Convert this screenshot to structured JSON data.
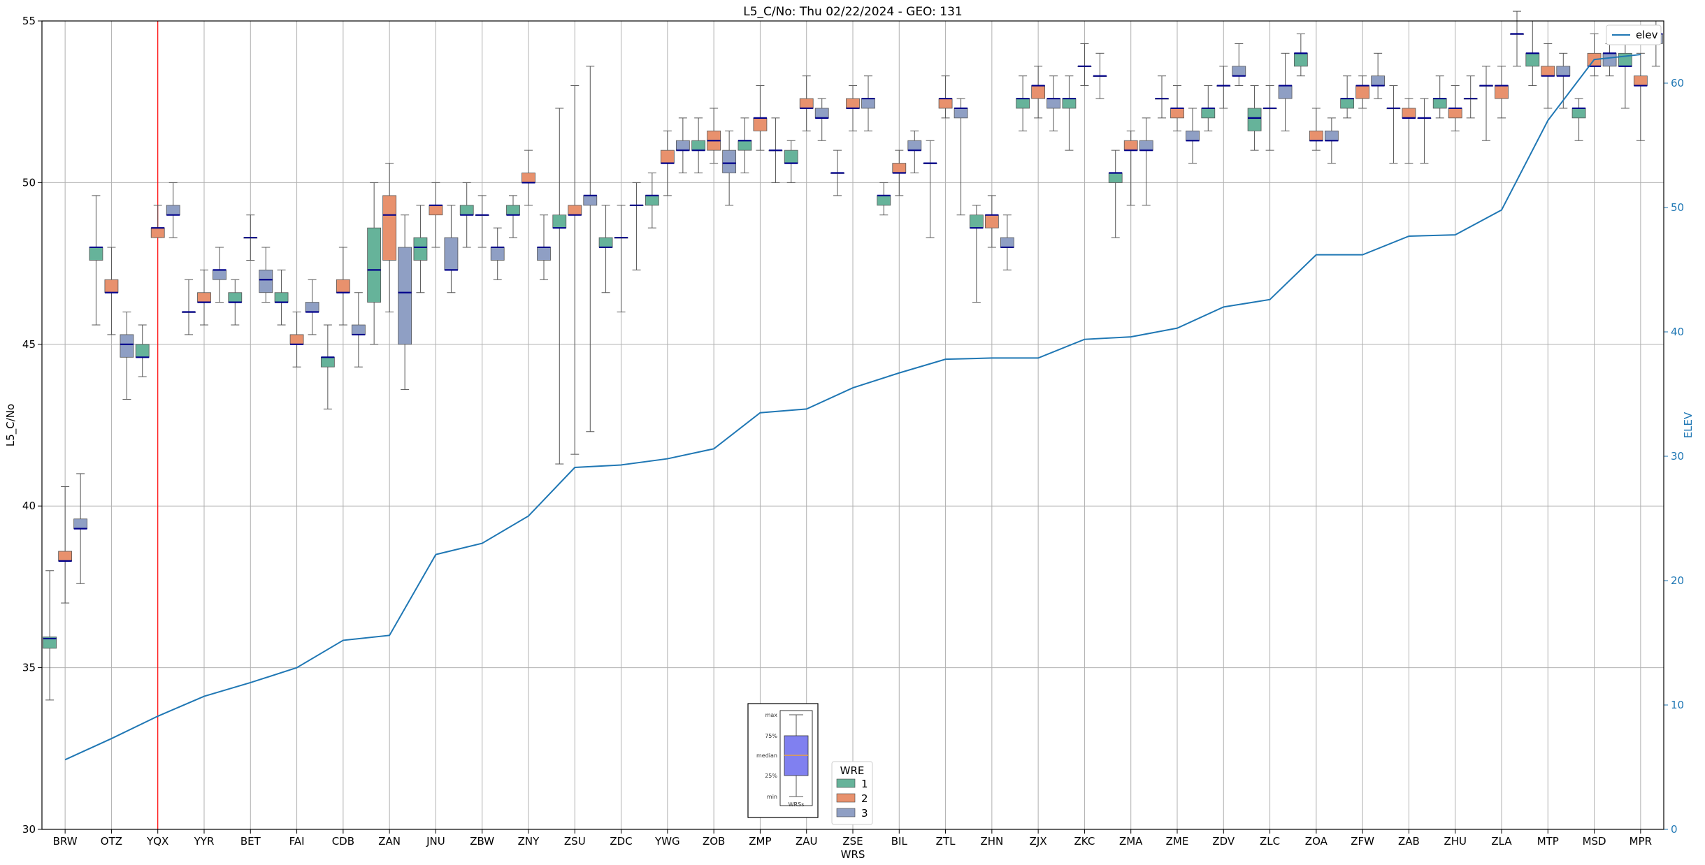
{
  "chart_data": {
    "type": "box",
    "title": "L5_C/No: Thu 02/22/2024 - GEO: 131",
    "xlabel": "WRS",
    "ylabel": "L5_C/No",
    "y2label": "ELEV",
    "ylim": [
      30,
      55
    ],
    "y2lim": [
      0,
      65
    ],
    "yticks": [
      30,
      35,
      40,
      45,
      50,
      55
    ],
    "y2ticks": [
      0,
      10,
      20,
      30,
      40,
      50,
      60
    ],
    "grid": true,
    "categories": [
      "BRW",
      "OTZ",
      "YQX",
      "YYR",
      "BET",
      "FAI",
      "CDB",
      "ZAN",
      "JNU",
      "ZBW",
      "ZNY",
      "ZSU",
      "ZDC",
      "YWG",
      "ZOB",
      "ZMP",
      "ZAU",
      "ZSE",
      "BIL",
      "ZTL",
      "ZHN",
      "ZJX",
      "ZKC",
      "ZMA",
      "ZME",
      "ZDV",
      "ZLC",
      "ZOA",
      "ZFW",
      "ZAB",
      "ZHU",
      "ZLA",
      "MTP",
      "MSD",
      "MPR"
    ],
    "highlight_category": "YQX",
    "highlight_color": "#ff0000",
    "wre_colors": {
      "1": "#66b39a",
      "2": "#e8916d",
      "3": "#8f9fc4"
    },
    "median_color": "#00008b",
    "elev_line_color": "#1f77b4",
    "boxes": [
      {
        "site": "BRW",
        "wre": 1,
        "min": 34.0,
        "q1": 35.6,
        "median": 35.9,
        "q3": 35.95,
        "max": 38.0
      },
      {
        "site": "BRW",
        "wre": 2,
        "min": 37.0,
        "q1": 38.3,
        "median": 38.3,
        "q3": 38.6,
        "max": 40.6
      },
      {
        "site": "BRW",
        "wre": 3,
        "min": 37.6,
        "q1": 39.3,
        "median": 39.3,
        "q3": 39.6,
        "max": 41.0
      },
      {
        "site": "OTZ",
        "wre": 1,
        "min": 45.6,
        "q1": 47.6,
        "median": 48.0,
        "q3": 48.0,
        "max": 49.6
      },
      {
        "site": "OTZ",
        "wre": 2,
        "min": 45.3,
        "q1": 46.6,
        "median": 46.6,
        "q3": 47.0,
        "max": 48.0
      },
      {
        "site": "OTZ",
        "wre": 3,
        "min": 43.3,
        "q1": 44.6,
        "median": 45.0,
        "q3": 45.3,
        "max": 46.0
      },
      {
        "site": "YQX",
        "wre": 1,
        "min": 44.0,
        "q1": 44.6,
        "median": 44.6,
        "q3": 45.0,
        "max": 45.6
      },
      {
        "site": "YQX",
        "wre": 2,
        "min": 48.3,
        "q1": 48.3,
        "median": 48.6,
        "q3": 48.6,
        "max": 49.3
      },
      {
        "site": "YQX",
        "wre": 3,
        "min": 48.3,
        "q1": 49.0,
        "median": 49.0,
        "q3": 49.3,
        "max": 50.0
      },
      {
        "site": "YYR",
        "wre": 1,
        "min": 45.3,
        "q1": 46.0,
        "median": 46.0,
        "q3": 46.0,
        "max": 47.0
      },
      {
        "site": "YYR",
        "wre": 2,
        "min": 45.6,
        "q1": 46.3,
        "median": 46.3,
        "q3": 46.6,
        "max": 47.3
      },
      {
        "site": "YYR",
        "wre": 3,
        "min": 46.3,
        "q1": 47.0,
        "median": 47.3,
        "q3": 47.3,
        "max": 48.0
      },
      {
        "site": "BET",
        "wre": 1,
        "min": 45.6,
        "q1": 46.3,
        "median": 46.3,
        "q3": 46.6,
        "max": 47.0
      },
      {
        "site": "BET",
        "wre": 2,
        "min": 47.6,
        "q1": 48.3,
        "median": 48.3,
        "q3": 48.3,
        "max": 49.0
      },
      {
        "site": "BET",
        "wre": 3,
        "min": 46.3,
        "q1": 46.6,
        "median": 47.0,
        "q3": 47.3,
        "max": 48.0
      },
      {
        "site": "FAI",
        "wre": 1,
        "min": 45.6,
        "q1": 46.3,
        "median": 46.3,
        "q3": 46.6,
        "max": 47.3
      },
      {
        "site": "FAI",
        "wre": 2,
        "min": 44.3,
        "q1": 45.0,
        "median": 45.0,
        "q3": 45.3,
        "max": 46.0
      },
      {
        "site": "FAI",
        "wre": 3,
        "min": 45.3,
        "q1": 46.0,
        "median": 46.0,
        "q3": 46.3,
        "max": 47.0
      },
      {
        "site": "CDB",
        "wre": 1,
        "min": 43.0,
        "q1": 44.3,
        "median": 44.6,
        "q3": 44.6,
        "max": 45.6
      },
      {
        "site": "CDB",
        "wre": 2,
        "min": 45.6,
        "q1": 46.6,
        "median": 46.6,
        "q3": 47.0,
        "max": 48.0
      },
      {
        "site": "CDB",
        "wre": 3,
        "min": 44.3,
        "q1": 45.3,
        "median": 45.3,
        "q3": 45.6,
        "max": 46.6
      },
      {
        "site": "ZAN",
        "wre": 1,
        "min": 45.0,
        "q1": 46.3,
        "median": 47.3,
        "q3": 48.6,
        "max": 50.0
      },
      {
        "site": "ZAN",
        "wre": 2,
        "min": 46.0,
        "q1": 47.6,
        "median": 49.0,
        "q3": 49.6,
        "max": 50.6
      },
      {
        "site": "ZAN",
        "wre": 3,
        "min": 43.6,
        "q1": 45.0,
        "median": 46.6,
        "q3": 48.0,
        "max": 49.0
      },
      {
        "site": "JNU",
        "wre": 1,
        "min": 46.6,
        "q1": 47.6,
        "median": 48.0,
        "q3": 48.3,
        "max": 49.3
      },
      {
        "site": "JNU",
        "wre": 2,
        "min": 48.0,
        "q1": 49.0,
        "median": 49.3,
        "q3": 49.3,
        "max": 50.0
      },
      {
        "site": "JNU",
        "wre": 3,
        "min": 46.6,
        "q1": 47.3,
        "median": 47.3,
        "q3": 48.3,
        "max": 49.3
      },
      {
        "site": "ZBW",
        "wre": 1,
        "min": 48.0,
        "q1": 49.0,
        "median": 49.0,
        "q3": 49.3,
        "max": 50.0
      },
      {
        "site": "ZBW",
        "wre": 2,
        "min": 48.0,
        "q1": 49.0,
        "median": 49.0,
        "q3": 49.0,
        "max": 49.6
      },
      {
        "site": "ZBW",
        "wre": 3,
        "min": 47.0,
        "q1": 47.6,
        "median": 48.0,
        "q3": 48.0,
        "max": 48.6
      },
      {
        "site": "ZNY",
        "wre": 1,
        "min": 48.3,
        "q1": 49.0,
        "median": 49.0,
        "q3": 49.3,
        "max": 49.6
      },
      {
        "site": "ZNY",
        "wre": 2,
        "min": 49.3,
        "q1": 50.0,
        "median": 50.0,
        "q3": 50.3,
        "max": 51.0
      },
      {
        "site": "ZNY",
        "wre": 3,
        "min": 47.0,
        "q1": 47.6,
        "median": 48.0,
        "q3": 48.0,
        "max": 49.0
      },
      {
        "site": "ZSU",
        "wre": 1,
        "min": 41.3,
        "q1": 48.6,
        "median": 48.6,
        "q3": 49.0,
        "max": 52.3
      },
      {
        "site": "ZSU",
        "wre": 2,
        "min": 41.6,
        "q1": 49.0,
        "median": 49.0,
        "q3": 49.3,
        "max": 53.0
      },
      {
        "site": "ZSU",
        "wre": 3,
        "min": 42.3,
        "q1": 49.3,
        "median": 49.6,
        "q3": 49.6,
        "max": 53.6
      },
      {
        "site": "ZDC",
        "wre": 1,
        "min": 46.6,
        "q1": 48.0,
        "median": 48.0,
        "q3": 48.3,
        "max": 49.3
      },
      {
        "site": "ZDC",
        "wre": 2,
        "min": 46.0,
        "q1": 48.3,
        "median": 48.3,
        "q3": 48.3,
        "max": 49.3
      },
      {
        "site": "ZDC",
        "wre": 3,
        "min": 47.3,
        "q1": 49.3,
        "median": 49.3,
        "q3": 49.3,
        "max": 50.0
      },
      {
        "site": "YWG",
        "wre": 1,
        "min": 48.6,
        "q1": 49.3,
        "median": 49.6,
        "q3": 49.6,
        "max": 50.3
      },
      {
        "site": "YWG",
        "wre": 2,
        "min": 49.6,
        "q1": 50.6,
        "median": 50.6,
        "q3": 51.0,
        "max": 51.6
      },
      {
        "site": "YWG",
        "wre": 3,
        "min": 50.3,
        "q1": 51.0,
        "median": 51.0,
        "q3": 51.3,
        "max": 52.0
      },
      {
        "site": "ZOB",
        "wre": 1,
        "min": 50.3,
        "q1": 51.0,
        "median": 51.0,
        "q3": 51.3,
        "max": 52.0
      },
      {
        "site": "ZOB",
        "wre": 2,
        "min": 50.6,
        "q1": 51.0,
        "median": 51.3,
        "q3": 51.6,
        "max": 52.3
      },
      {
        "site": "ZOB",
        "wre": 3,
        "min": 49.3,
        "q1": 50.3,
        "median": 50.6,
        "q3": 51.0,
        "max": 51.6
      },
      {
        "site": "ZMP",
        "wre": 1,
        "min": 50.3,
        "q1": 51.0,
        "median": 51.3,
        "q3": 51.3,
        "max": 52.0
      },
      {
        "site": "ZMP",
        "wre": 2,
        "min": 51.0,
        "q1": 51.6,
        "median": 52.0,
        "q3": 52.0,
        "max": 53.0
      },
      {
        "site": "ZMP",
        "wre": 3,
        "min": 50.0,
        "q1": 51.0,
        "median": 51.0,
        "q3": 51.0,
        "max": 52.0
      },
      {
        "site": "ZAU",
        "wre": 1,
        "min": 50.0,
        "q1": 50.6,
        "median": 50.6,
        "q3": 51.0,
        "max": 51.3
      },
      {
        "site": "ZAU",
        "wre": 2,
        "min": 51.6,
        "q1": 52.3,
        "median": 52.3,
        "q3": 52.6,
        "max": 53.3
      },
      {
        "site": "ZAU",
        "wre": 3,
        "min": 51.3,
        "q1": 52.0,
        "median": 52.0,
        "q3": 52.3,
        "max": 52.6
      },
      {
        "site": "ZSE",
        "wre": 1,
        "min": 49.6,
        "q1": 50.3,
        "median": 50.3,
        "q3": 50.3,
        "max": 51.0
      },
      {
        "site": "ZSE",
        "wre": 2,
        "min": 51.6,
        "q1": 52.3,
        "median": 52.3,
        "q3": 52.6,
        "max": 53.0
      },
      {
        "site": "ZSE",
        "wre": 3,
        "min": 51.6,
        "q1": 52.3,
        "median": 52.6,
        "q3": 52.6,
        "max": 53.3
      },
      {
        "site": "BIL",
        "wre": 1,
        "min": 49.0,
        "q1": 49.3,
        "median": 49.6,
        "q3": 49.6,
        "max": 50.0
      },
      {
        "site": "BIL",
        "wre": 2,
        "min": 49.6,
        "q1": 50.3,
        "median": 50.3,
        "q3": 50.6,
        "max": 51.0
      },
      {
        "site": "BIL",
        "wre": 3,
        "min": 50.3,
        "q1": 51.0,
        "median": 51.0,
        "q3": 51.3,
        "max": 51.6
      },
      {
        "site": "ZTL",
        "wre": 1,
        "min": 48.3,
        "q1": 50.6,
        "median": 50.6,
        "q3": 50.6,
        "max": 51.3
      },
      {
        "site": "ZTL",
        "wre": 2,
        "min": 52.0,
        "q1": 52.3,
        "median": 52.6,
        "q3": 52.6,
        "max": 53.3
      },
      {
        "site": "ZTL",
        "wre": 3,
        "min": 49.0,
        "q1": 52.0,
        "median": 52.3,
        "q3": 52.3,
        "max": 52.6
      },
      {
        "site": "ZHN",
        "wre": 1,
        "min": 46.3,
        "q1": 48.6,
        "median": 48.6,
        "q3": 49.0,
        "max": 49.3
      },
      {
        "site": "ZHN",
        "wre": 2,
        "min": 48.0,
        "q1": 48.6,
        "median": 49.0,
        "q3": 49.0,
        "max": 49.6
      },
      {
        "site": "ZHN",
        "wre": 3,
        "min": 47.3,
        "q1": 48.0,
        "median": 48.0,
        "q3": 48.3,
        "max": 49.0
      },
      {
        "site": "ZJX",
        "wre": 1,
        "min": 51.6,
        "q1": 52.3,
        "median": 52.6,
        "q3": 52.6,
        "max": 53.3
      },
      {
        "site": "ZJX",
        "wre": 2,
        "min": 52.0,
        "q1": 52.6,
        "median": 53.0,
        "q3": 53.0,
        "max": 53.6
      },
      {
        "site": "ZJX",
        "wre": 3,
        "min": 51.6,
        "q1": 52.3,
        "median": 52.6,
        "q3": 52.6,
        "max": 53.3
      },
      {
        "site": "ZKC",
        "wre": 1,
        "min": 51.0,
        "q1": 52.3,
        "median": 52.6,
        "q3": 52.6,
        "max": 53.3
      },
      {
        "site": "ZKC",
        "wre": 2,
        "min": 53.0,
        "q1": 53.6,
        "median": 53.6,
        "q3": 53.6,
        "max": 54.3
      },
      {
        "site": "ZKC",
        "wre": 3,
        "min": 52.6,
        "q1": 53.3,
        "median": 53.3,
        "q3": 53.3,
        "max": 54.0
      },
      {
        "site": "ZMA",
        "wre": 1,
        "min": 48.3,
        "q1": 50.0,
        "median": 50.3,
        "q3": 50.3,
        "max": 51.0
      },
      {
        "site": "ZMA",
        "wre": 2,
        "min": 49.3,
        "q1": 51.0,
        "median": 51.0,
        "q3": 51.3,
        "max": 51.6
      },
      {
        "site": "ZMA",
        "wre": 3,
        "min": 49.3,
        "q1": 51.0,
        "median": 51.0,
        "q3": 51.3,
        "max": 52.0
      },
      {
        "site": "ZME",
        "wre": 1,
        "min": 52.0,
        "q1": 52.6,
        "median": 52.6,
        "q3": 52.6,
        "max": 53.3
      },
      {
        "site": "ZME",
        "wre": 2,
        "min": 51.6,
        "q1": 52.0,
        "median": 52.3,
        "q3": 52.3,
        "max": 53.0
      },
      {
        "site": "ZME",
        "wre": 3,
        "min": 50.6,
        "q1": 51.3,
        "median": 51.3,
        "q3": 51.6,
        "max": 52.3
      },
      {
        "site": "ZDV",
        "wre": 1,
        "min": 51.6,
        "q1": 52.0,
        "median": 52.3,
        "q3": 52.3,
        "max": 53.0
      },
      {
        "site": "ZDV",
        "wre": 2,
        "min": 52.3,
        "q1": 53.0,
        "median": 53.0,
        "q3": 53.0,
        "max": 53.6
      },
      {
        "site": "ZDV",
        "wre": 3,
        "min": 53.0,
        "q1": 53.3,
        "median": 53.3,
        "q3": 53.6,
        "max": 54.3
      },
      {
        "site": "ZLC",
        "wre": 1,
        "min": 51.0,
        "q1": 51.6,
        "median": 52.0,
        "q3": 52.3,
        "max": 53.0
      },
      {
        "site": "ZLC",
        "wre": 2,
        "min": 51.0,
        "q1": 52.3,
        "median": 52.3,
        "q3": 52.3,
        "max": 53.0
      },
      {
        "site": "ZLC",
        "wre": 3,
        "min": 51.6,
        "q1": 52.6,
        "median": 53.0,
        "q3": 53.0,
        "max": 54.0
      },
      {
        "site": "ZOA",
        "wre": 1,
        "min": 53.3,
        "q1": 53.6,
        "median": 54.0,
        "q3": 54.0,
        "max": 54.6
      },
      {
        "site": "ZOA",
        "wre": 2,
        "min": 51.0,
        "q1": 51.3,
        "median": 51.3,
        "q3": 51.6,
        "max": 52.3
      },
      {
        "site": "ZOA",
        "wre": 3,
        "min": 50.6,
        "q1": 51.3,
        "median": 51.3,
        "q3": 51.6,
        "max": 52.0
      },
      {
        "site": "ZFW",
        "wre": 1,
        "min": 52.0,
        "q1": 52.3,
        "median": 52.6,
        "q3": 52.6,
        "max": 53.3
      },
      {
        "site": "ZFW",
        "wre": 2,
        "min": 52.3,
        "q1": 52.6,
        "median": 53.0,
        "q3": 53.0,
        "max": 53.3
      },
      {
        "site": "ZFW",
        "wre": 3,
        "min": 52.6,
        "q1": 53.0,
        "median": 53.0,
        "q3": 53.3,
        "max": 54.0
      },
      {
        "site": "ZAB",
        "wre": 1,
        "min": 50.6,
        "q1": 52.3,
        "median": 52.3,
        "q3": 52.3,
        "max": 53.0
      },
      {
        "site": "ZAB",
        "wre": 2,
        "min": 50.6,
        "q1": 52.0,
        "median": 52.0,
        "q3": 52.3,
        "max": 52.6
      },
      {
        "site": "ZAB",
        "wre": 3,
        "min": 50.6,
        "q1": 52.0,
        "median": 52.0,
        "q3": 52.0,
        "max": 52.6
      },
      {
        "site": "ZHU",
        "wre": 1,
        "min": 52.0,
        "q1": 52.3,
        "median": 52.6,
        "q3": 52.6,
        "max": 53.3
      },
      {
        "site": "ZHU",
        "wre": 2,
        "min": 51.6,
        "q1": 52.0,
        "median": 52.3,
        "q3": 52.3,
        "max": 53.0
      },
      {
        "site": "ZHU",
        "wre": 3,
        "min": 52.0,
        "q1": 52.6,
        "median": 52.6,
        "q3": 52.6,
        "max": 53.3
      },
      {
        "site": "ZLA",
        "wre": 1,
        "min": 51.3,
        "q1": 53.0,
        "median": 53.0,
        "q3": 53.0,
        "max": 53.6
      },
      {
        "site": "ZLA",
        "wre": 2,
        "min": 52.0,
        "q1": 52.6,
        "median": 53.0,
        "q3": 53.0,
        "max": 53.6
      },
      {
        "site": "ZLA",
        "wre": 3,
        "min": 53.6,
        "q1": 54.6,
        "median": 54.6,
        "q3": 54.6,
        "max": 55.3
      },
      {
        "site": "MTP",
        "wre": 1,
        "min": 53.0,
        "q1": 53.6,
        "median": 54.0,
        "q3": 54.0,
        "max": 55.0
      },
      {
        "site": "MTP",
        "wre": 2,
        "min": 52.3,
        "q1": 53.3,
        "median": 53.3,
        "q3": 53.6,
        "max": 54.3
      },
      {
        "site": "MTP",
        "wre": 3,
        "min": 52.3,
        "q1": 53.3,
        "median": 53.3,
        "q3": 53.6,
        "max": 54.0
      },
      {
        "site": "MSD",
        "wre": 1,
        "min": 51.3,
        "q1": 52.0,
        "median": 52.3,
        "q3": 52.3,
        "max": 52.6
      },
      {
        "site": "MSD",
        "wre": 2,
        "min": 53.3,
        "q1": 53.6,
        "median": 53.6,
        "q3": 54.0,
        "max": 54.6
      },
      {
        "site": "MSD",
        "wre": 3,
        "min": 53.3,
        "q1": 53.6,
        "median": 54.0,
        "q3": 54.0,
        "max": 54.3
      },
      {
        "site": "MPR",
        "wre": 1,
        "min": 52.3,
        "q1": 53.6,
        "median": 53.6,
        "q3": 54.0,
        "max": 54.6
      },
      {
        "site": "MPR",
        "wre": 2,
        "min": 51.3,
        "q1": 53.0,
        "median": 53.0,
        "q3": 53.3,
        "max": 54.0
      },
      {
        "site": "MPR",
        "wre": 3,
        "min": 53.6,
        "q1": 54.3,
        "median": 54.6,
        "q3": 54.6,
        "max": 55.0
      }
    ],
    "elev_series": {
      "name": "elev",
      "values": [
        5.6,
        7.3,
        9.1,
        10.7,
        11.8,
        13.0,
        15.2,
        15.6,
        22.1,
        23.0,
        25.2,
        29.1,
        29.3,
        29.8,
        30.6,
        33.5,
        33.8,
        35.5,
        36.7,
        37.8,
        37.9,
        37.9,
        39.4,
        39.6,
        40.3,
        42.0,
        42.6,
        46.2,
        46.2,
        47.7,
        47.8,
        49.8,
        57.0,
        61.9,
        62.3
      ]
    },
    "legend": {
      "title": "WRE",
      "entries": [
        "1",
        "2",
        "3"
      ],
      "elev_label": "elev",
      "elev_position": "top-right",
      "wre_position": "bottom-center"
    },
    "key_inset": {
      "labels": [
        "max",
        "75%",
        "median",
        "25%",
        "min"
      ],
      "xlabel": "WRSs",
      "box_color": "#8080f0",
      "median_color": "#e8a040"
    }
  }
}
